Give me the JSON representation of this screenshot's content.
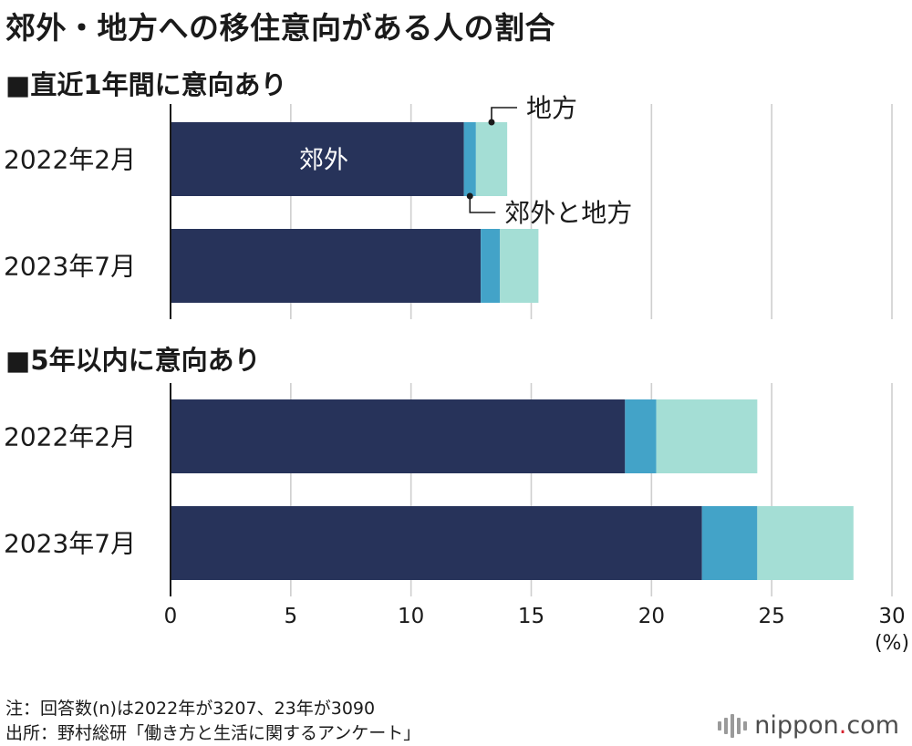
{
  "title": "郊外・地方への移住意向がある人の割合",
  "chart_data": {
    "type": "bar",
    "orientation": "horizontal",
    "stacked": true,
    "title": "郊外・地方への移住意向がある人の割合",
    "xlabel": "",
    "unit_label": "(%)",
    "xlim": [
      0,
      30
    ],
    "xticks": [
      0,
      5,
      10,
      15,
      20,
      25,
      30
    ],
    "grid": true,
    "series": [
      {
        "name": "郊外",
        "color": "#27335a"
      },
      {
        "name": "郊外と地方",
        "color": "#43a3c8"
      },
      {
        "name": "地方",
        "color": "#a4ded5"
      }
    ],
    "panels": [
      {
        "title": "■直近1年間に意向あり",
        "rows": [
          {
            "label": "2022年2月",
            "values": [
              12.2,
              0.5,
              1.3
            ]
          },
          {
            "label": "2023年7月",
            "values": [
              12.9,
              0.8,
              1.6
            ]
          }
        ]
      },
      {
        "title": "■5年以内に意向あり",
        "rows": [
          {
            "label": "2022年2月",
            "values": [
              18.9,
              1.3,
              4.2
            ]
          },
          {
            "label": "2023年7月",
            "values": [
              22.1,
              2.3,
              4.0
            ]
          }
        ]
      }
    ],
    "annotations": {
      "inside_label": "郊外",
      "callout_top": "地方",
      "callout_bottom": "郊外と地方"
    }
  },
  "note": "注：回答数(n)は2022年が3207、23年が3090",
  "source": "出所：野村総研「働き方と生活に関するアンケート」",
  "logo": {
    "prefix": "nippon",
    "dot": ".",
    "suffix": "com"
  }
}
